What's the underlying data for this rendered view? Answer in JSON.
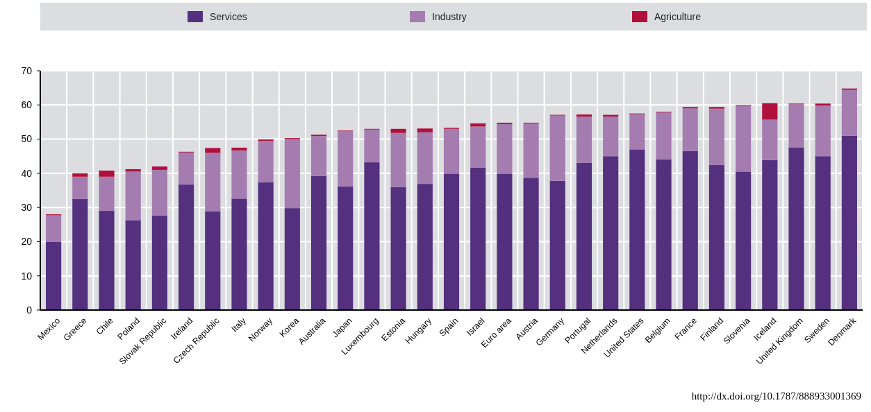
{
  "chart_data": {
    "type": "bar",
    "stacked": true,
    "categories": [
      "Mexico",
      "Greece",
      "Chile",
      "Poland",
      "Slovak Republic",
      "Ireland",
      "Czech Republic",
      "Italy",
      "Norway",
      "Korea",
      "Australia",
      "Japan",
      "Luxembourg",
      "Estonia",
      "Hungary",
      "Spain",
      "Israel",
      "Euro area",
      "Austria",
      "Germany",
      "Portugal",
      "Netherlands",
      "United States",
      "Belgium",
      "France",
      "Finland",
      "Slovenia",
      "Iceland",
      "United Kingdom",
      "Sweden",
      "Denmark"
    ],
    "series": [
      {
        "name": "Services",
        "color": "#54307f",
        "values": [
          20,
          32.5,
          29,
          26.3,
          27.7,
          36.7,
          28.9,
          32.6,
          37.4,
          29.8,
          39.2,
          36.2,
          43.2,
          36,
          36.9,
          39.9,
          41.6,
          39.9,
          38.7,
          37.8,
          43.1,
          45,
          47,
          44.1,
          46.5,
          42.4,
          40.5,
          43.9,
          47.6,
          45,
          51
        ]
      },
      {
        "name": "Industry",
        "color": "#a57cb0",
        "values": [
          7.7,
          6.5,
          10,
          14.2,
          13.3,
          9.4,
          17.1,
          14.1,
          12.1,
          20.2,
          11.7,
          16.1,
          9.6,
          15.8,
          15.1,
          13.1,
          12.1,
          14.5,
          15.9,
          19.1,
          13.5,
          11.6,
          10.3,
          13.7,
          12.5,
          16.5,
          19.3,
          11.8,
          12.6,
          14.8,
          13.4
        ]
      },
      {
        "name": "Agriculture",
        "color": "#b0103c",
        "values": [
          0.3,
          1,
          1.8,
          0.7,
          1,
          0.2,
          1.4,
          0.8,
          0.4,
          0.3,
          0.4,
          0.2,
          0.2,
          1.2,
          1.1,
          0.3,
          0.9,
          0.4,
          0.2,
          0.2,
          0.6,
          0.5,
          0.2,
          0.2,
          0.4,
          0.5,
          0.2,
          4.8,
          0.2,
          0.6,
          0.4
        ]
      }
    ],
    "ylim": [
      0,
      70
    ],
    "yticks": [
      0,
      10,
      20,
      30,
      40,
      50,
      60,
      70
    ],
    "grid": true,
    "legend": "top",
    "annotations": [
      "http://dx.doi.org/10.1787/888933001369"
    ]
  }
}
